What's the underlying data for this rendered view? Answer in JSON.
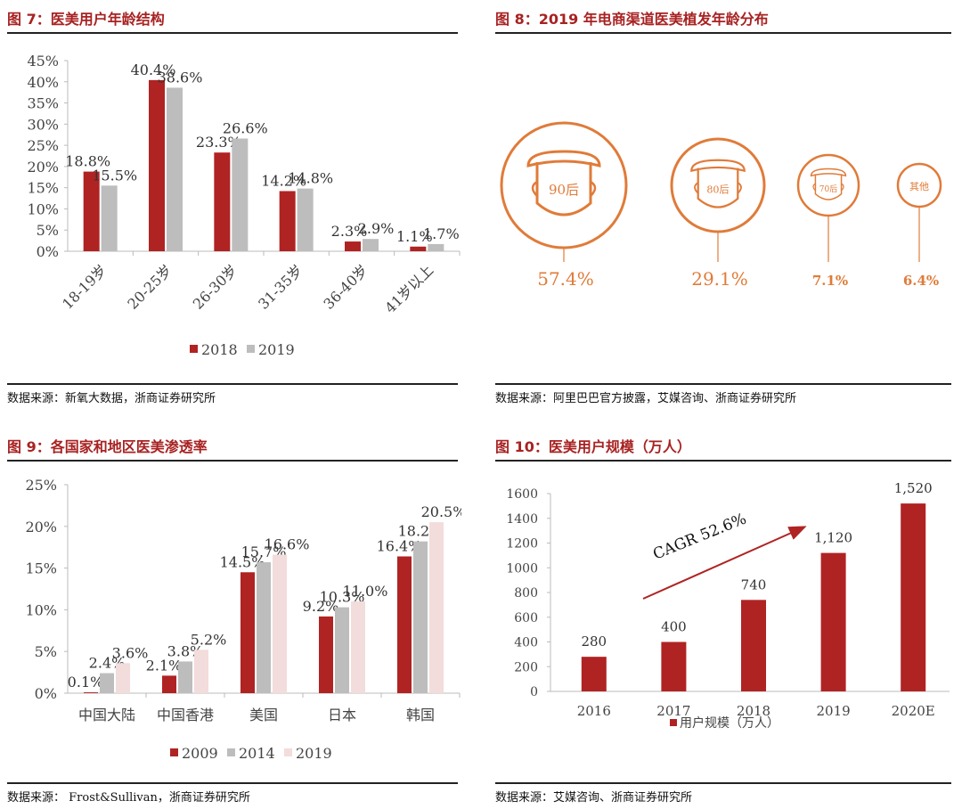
{
  "colors": {
    "dark_red": "#b02323",
    "gray": "#bdbdbd",
    "pink": "#f3dcdc",
    "orange": "#e07b39",
    "title_red": "#a82222"
  },
  "fig7": {
    "title": "图 7：医美用户年龄结构",
    "source": "数据来源：新氧大数据，浙商证券研究所",
    "chart_data": {
      "type": "bar",
      "categories": [
        "18-19岁",
        "20-25岁",
        "26-30岁",
        "31-35岁",
        "36-40岁",
        "41岁以上"
      ],
      "series": [
        {
          "name": "2018",
          "values": [
            18.8,
            40.4,
            23.3,
            14.2,
            2.3,
            1.1
          ],
          "labels": [
            "18.8%",
            "40.4%",
            "23.3%",
            "14.2%",
            "2.3%",
            "1.1%"
          ]
        },
        {
          "name": "2019",
          "values": [
            15.5,
            38.6,
            26.6,
            14.8,
            2.9,
            1.7
          ],
          "labels": [
            "15.5%",
            "38.6%",
            "26.6%",
            "14.8%",
            "2.9%",
            "1.7%"
          ]
        }
      ],
      "ylim": [
        0,
        45
      ],
      "yticks": [
        "0%",
        "5%",
        "10%",
        "15%",
        "20%",
        "25%",
        "30%",
        "35%",
        "40%",
        "45%"
      ],
      "legend_position": "bottom"
    }
  },
  "fig8": {
    "title": "图 8：2019 年电商渠道医美植发年龄分布",
    "source": "数据来源：阿里巴巴官方披露，艾媒咨询、浙商证券研究所",
    "items": [
      {
        "label": "90后",
        "value": "57.4%",
        "share": 57.4,
        "icon": "face-mask-icon"
      },
      {
        "label": "80后",
        "value": "29.1%",
        "share": 29.1,
        "icon": "face-mask-icon"
      },
      {
        "label": "70后",
        "value": "7.1%",
        "share": 7.1,
        "icon": "face-mask-icon"
      },
      {
        "label": "其他",
        "value": "6.4%",
        "share": 6.4,
        "icon": "circle-icon"
      }
    ]
  },
  "fig9": {
    "title": "图 9：各国家和地区医美渗透率",
    "source": "数据来源： Frost&Sullivan，浙商证券研究所",
    "chart_data": {
      "type": "bar",
      "categories": [
        "中国大陆",
        "中国香港",
        "美国",
        "日本",
        "韩国"
      ],
      "series": [
        {
          "name": "2009",
          "values": [
            0.1,
            2.1,
            14.5,
            9.2,
            16.4
          ],
          "labels": [
            "0.1%",
            "2.1%",
            "14.5%",
            "9.2%",
            "16.4%"
          ]
        },
        {
          "name": "2014",
          "values": [
            2.4,
            3.8,
            15.7,
            10.3,
            18.2
          ],
          "labels": [
            "2.4%",
            "3.8%",
            "15.7%",
            "10.3%",
            "18.2%"
          ]
        },
        {
          "name": "2019",
          "values": [
            3.6,
            5.2,
            16.6,
            11.0,
            20.5
          ],
          "labels": [
            "3.6%",
            "5.2%",
            "16.6%",
            "11.0%",
            "20.5%"
          ]
        }
      ],
      "ylim": [
        0,
        25
      ],
      "yticks": [
        "0%",
        "5%",
        "10%",
        "15%",
        "20%",
        "25%"
      ],
      "legend_position": "bottom"
    }
  },
  "fig10": {
    "title": "图 10：医美用户规模（万人）",
    "source": "数据来源：艾媒咨询、浙商证券研究所",
    "chart_data": {
      "type": "bar",
      "categories": [
        "2016",
        "2017",
        "2018",
        "2019",
        "2020E"
      ],
      "series": [
        {
          "name": "用户规模（万人）",
          "values": [
            280,
            400,
            740,
            1120,
            1520
          ],
          "labels": [
            "280",
            "400",
            "740",
            "1,120",
            "1,520"
          ]
        }
      ],
      "ylim": [
        0,
        1600
      ],
      "yticks": [
        "0",
        "200",
        "400",
        "600",
        "800",
        "1000",
        "1200",
        "1400",
        "1600"
      ],
      "annotation": "CAGR 52.6%",
      "legend_position": "bottom"
    }
  }
}
